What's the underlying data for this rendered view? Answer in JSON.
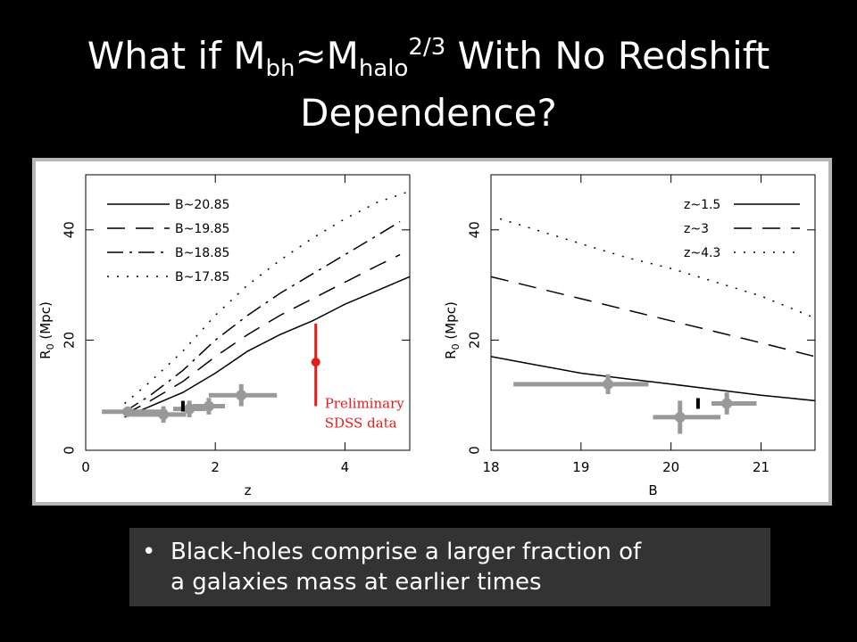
{
  "title": {
    "part1": "What if M",
    "sub1": "bh",
    "part2": "≈M",
    "sub2": "halo",
    "sup": "2/3",
    "part3": " With No Redshift",
    "line2": "Dependence?"
  },
  "colors": {
    "background": "#000000",
    "panel_frame": "#b5b5b5",
    "plot_bg": "#ffffff",
    "data_points": "#999999",
    "sdss": "#e31b1b",
    "bullet_box": "#333333"
  },
  "chart_data": [
    {
      "type": "line",
      "xlabel": "z",
      "ylabel_main": "R",
      "ylabel_sub": "0",
      "ylabel_unit": "(Mpc)",
      "xlim": [
        0,
        5
      ],
      "ylim": [
        0,
        50
      ],
      "xticks": [
        0,
        2,
        4
      ],
      "yticks": [
        0,
        20,
        40
      ],
      "legend_position": "top-left",
      "series": [
        {
          "name": "B~20.85",
          "dash": "solid",
          "x": [
            0.6,
            1.0,
            1.5,
            2.0,
            2.5,
            3.0,
            3.5,
            4.0,
            4.5,
            5.0
          ],
          "y": [
            6.0,
            8.0,
            10.5,
            14.0,
            18.0,
            21.0,
            23.5,
            26.5,
            29.0,
            31.5
          ]
        },
        {
          "name": "B~19.85",
          "dash": "long-dash",
          "x": [
            0.6,
            1.0,
            1.5,
            2.0,
            2.5,
            3.0,
            3.5,
            4.0,
            4.5,
            4.85
          ],
          "y": [
            6.5,
            9.0,
            12.5,
            17.0,
            21.0,
            24.5,
            27.5,
            30.5,
            33.5,
            35.5
          ]
        },
        {
          "name": "B~18.85",
          "dash": "dash-dot",
          "x": [
            0.6,
            1.0,
            1.5,
            2.0,
            2.5,
            3.0,
            3.5,
            4.0,
            4.5,
            4.85
          ],
          "y": [
            7.0,
            10.0,
            14.5,
            20.0,
            24.5,
            28.5,
            32.0,
            35.5,
            39.0,
            41.5
          ]
        },
        {
          "name": "B~17.85",
          "dash": "dotted",
          "x": [
            0.6,
            1.0,
            1.5,
            2.0,
            2.5,
            3.0,
            3.5,
            4.0,
            4.5,
            5.0
          ],
          "y": [
            8.5,
            12.5,
            18.0,
            24.5,
            30.0,
            34.5,
            38.5,
            42.0,
            45.0,
            47.0
          ]
        }
      ],
      "points": [
        {
          "x": 0.65,
          "y": 7.0,
          "xerr": [
            0.4,
            0.6
          ],
          "yerr": 0
        },
        {
          "x": 1.2,
          "y": 6.5,
          "xerr": [
            0.5,
            0.35
          ],
          "yerr": 1.5
        },
        {
          "x": 1.6,
          "y": 7.5,
          "xerr": [
            0.25,
            0.25
          ],
          "yerr": 1.5
        },
        {
          "x": 1.9,
          "y": 8.0,
          "xerr": [
            0.25,
            0.25
          ],
          "yerr": 1.5
        },
        {
          "x": 2.4,
          "y": 10.0,
          "xerr": [
            0.5,
            0.55
          ],
          "yerr": 2.0
        }
      ],
      "tick_marks": [
        {
          "x": 1.5,
          "y": 8.0
        }
      ],
      "sdss": {
        "x": 3.55,
        "y": 16.0,
        "ylo": 8.0,
        "yhi": 23.0,
        "label_line1": "Preliminary",
        "label_line2": "SDSS data"
      }
    },
    {
      "type": "line",
      "xlabel": "B",
      "ylabel_main": "R",
      "ylabel_sub": "0",
      "ylabel_unit": "(Mpc)",
      "xlim": [
        18,
        21.6
      ],
      "ylim": [
        0,
        50
      ],
      "xticks": [
        18,
        19,
        20,
        21
      ],
      "yticks": [
        0,
        20,
        40
      ],
      "legend_position": "top-right",
      "series": [
        {
          "name": "z~1.5",
          "dash": "solid",
          "x": [
            18.0,
            18.5,
            19.0,
            19.5,
            20.0,
            20.5,
            21.0,
            21.6
          ],
          "y": [
            17.0,
            15.5,
            14.0,
            13.0,
            12.0,
            11.0,
            10.0,
            9.0
          ]
        },
        {
          "name": "z~3",
          "dash": "long-dash",
          "x": [
            18.0,
            18.5,
            19.0,
            19.5,
            20.0,
            20.5,
            21.0,
            21.6
          ],
          "y": [
            31.5,
            29.5,
            27.5,
            25.5,
            23.5,
            21.5,
            19.5,
            17.0
          ]
        },
        {
          "name": "z~4.3",
          "dash": "dotted",
          "x": [
            18.1,
            18.5,
            19.0,
            19.5,
            20.0,
            20.5,
            21.0,
            21.6
          ],
          "y": [
            42.0,
            40.0,
            37.5,
            35.0,
            33.0,
            30.5,
            28.0,
            24.0
          ]
        }
      ],
      "points": [
        {
          "x": 19.3,
          "y": 12.0,
          "xerr": [
            1.05,
            0.45
          ],
          "yerr": 1.8
        },
        {
          "x": 20.1,
          "y": 6.0,
          "xerr": [
            0.3,
            0.45
          ],
          "yerr": 3.0
        },
        {
          "x": 20.62,
          "y": 8.5,
          "xerr": [
            0.17,
            0.33
          ],
          "yerr": 2.0
        }
      ],
      "tick_marks": [
        {
          "x": 20.3,
          "y": 8.5
        }
      ]
    }
  ],
  "bullet": {
    "symbol": "•",
    "line1": "Black-holes comprise a larger fraction of",
    "line2": "a galaxies mass at earlier times"
  }
}
